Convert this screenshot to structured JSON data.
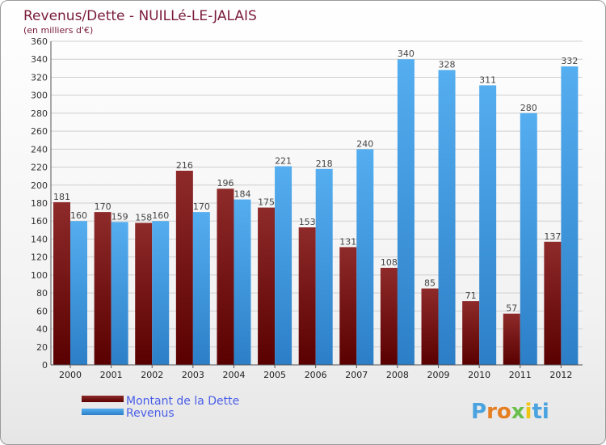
{
  "chart_data": {
    "type": "bar",
    "title": "Revenus/Dette - NUILLé-LE-JALAIS",
    "subtitle": "(en milliers d'€)",
    "categories": [
      "2000",
      "2001",
      "2002",
      "2003",
      "2004",
      "2005",
      "2006",
      "2007",
      "2008",
      "2009",
      "2010",
      "2011",
      "2012"
    ],
    "series": [
      {
        "name": "Montant de la Dette",
        "color": "#7b0d0d",
        "values": [
          181,
          170,
          158,
          216,
          196,
          175,
          153,
          131,
          108,
          85,
          71,
          57,
          137
        ]
      },
      {
        "name": "Revenus",
        "color": "#3f9de6",
        "values": [
          160,
          159,
          160,
          170,
          184,
          221,
          218,
          240,
          340,
          328,
          311,
          280,
          332
        ]
      }
    ],
    "ylim": [
      0,
      360
    ],
    "ytick_step": 20,
    "grid": true,
    "legend_position": "bottom-left"
  },
  "logo": {
    "letters": [
      "P",
      "r",
      "o",
      "x",
      "i",
      "t",
      "i"
    ],
    "colors": [
      "#4aa3df",
      "#e67e22",
      "#e67e22",
      "#6abf4b",
      "#f1c40f",
      "#4aa3df",
      "#4aa3df"
    ]
  }
}
